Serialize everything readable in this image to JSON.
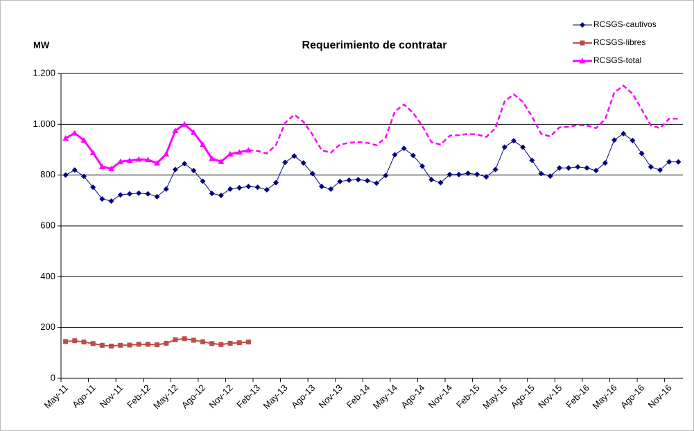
{
  "chart_data": {
    "type": "line",
    "title": "Requerimiento de contratar",
    "y_label": "MW",
    "categories": [
      "May-11",
      null,
      null,
      "Ago-11",
      null,
      null,
      "Nov-11",
      null,
      null,
      "Feb-12",
      null,
      null,
      "May-12",
      null,
      null,
      "Ago-12",
      null,
      null,
      "Nov-12",
      null,
      null,
      "Feb-13",
      null,
      null,
      "May-13",
      null,
      null,
      "Ago-13",
      null,
      null,
      "Nov-13",
      null,
      null,
      "Feb-14",
      null,
      null,
      "May-14",
      null,
      null,
      "Ago-14",
      null,
      null,
      "Nov-14",
      null,
      null,
      "Feb-15",
      null,
      null,
      "May-15",
      null,
      null,
      "Ago-15",
      null,
      null,
      "Nov-15",
      null,
      null,
      "Feb-16",
      null,
      null,
      "May-16",
      null,
      null,
      "Ago-16",
      null,
      null,
      "Nov-16",
      null
    ],
    "series": [
      {
        "name": "RCSGS-cautivos",
        "color": "#000080",
        "marker": "diamond",
        "values": [
          800,
          820,
          795,
          752,
          706,
          698,
          722,
          726,
          729,
          726,
          715,
          745,
          822,
          845,
          818,
          776,
          728,
          720,
          745,
          750,
          755,
          752,
          742,
          770,
          850,
          875,
          848,
          806,
          755,
          745,
          775,
          780,
          782,
          778,
          768,
          798,
          880,
          905,
          877,
          835,
          782,
          770,
          802,
          802,
          807,
          803,
          793,
          822,
          910,
          935,
          910,
          858,
          806,
          796,
          828,
          828,
          832,
          828,
          818,
          848,
          938,
          963,
          936,
          885,
          832,
          820,
          852,
          852
        ]
      },
      {
        "name": "RCSGS-libres",
        "color": "#be4b48",
        "marker": "square",
        "values": [
          145,
          148,
          143,
          137,
          130,
          127,
          130,
          131,
          134,
          134,
          132,
          138,
          152,
          156,
          150,
          144,
          137,
          133,
          138,
          140,
          143,
          null,
          null,
          null,
          null,
          null,
          null,
          null,
          null,
          null,
          null,
          null,
          null,
          null,
          null,
          null,
          null,
          null,
          null,
          null,
          null,
          null,
          null,
          null,
          null,
          null,
          null,
          null,
          null,
          null,
          null,
          null,
          null,
          null,
          null,
          null,
          null,
          null,
          null,
          null,
          null,
          null,
          null,
          null,
          null,
          null,
          null,
          null
        ]
      },
      {
        "name": "RCSGS-total",
        "color": "#ff00ff",
        "marker": "triangle",
        "dash_start": 20,
        "values": [
          945,
          965,
          937,
          888,
          833,
          825,
          853,
          857,
          862,
          860,
          847,
          883,
          975,
          1000,
          968,
          920,
          865,
          853,
          883,
          890,
          898,
          895,
          885,
          918,
          1005,
          1038,
          1010,
          960,
          898,
          888,
          920,
          927,
          930,
          927,
          917,
          948,
          1050,
          1078,
          1045,
          993,
          930,
          920,
          955,
          957,
          962,
          960,
          950,
          985,
          1090,
          1118,
          1088,
          1030,
          962,
          952,
          988,
          990,
          997,
          995,
          985,
          1020,
          1125,
          1152,
          1120,
          1058,
          995,
          985,
          1022,
          1022
        ]
      }
    ],
    "ylim": [
      0,
      1200
    ],
    "yticks": [
      0,
      200,
      400,
      600,
      {
        "value": 800,
        "label": "800"
      },
      {
        "value": 1000,
        "label": "1.000"
      },
      {
        "value": 1200,
        "label": "1.200"
      }
    ],
    "grid": true,
    "legend": "top-right"
  }
}
